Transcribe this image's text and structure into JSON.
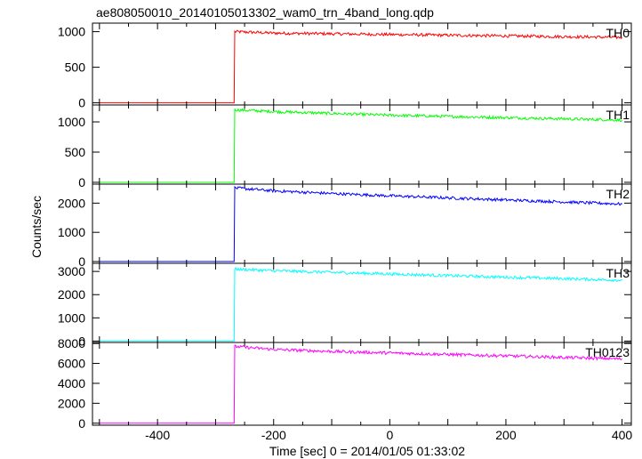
{
  "title": "ae808050010_20140105013302_wam0_trn_4band_long.qdp",
  "ylabel": "Counts/sec",
  "xlabel": "Time [sec] 0 = 2014/01/05 01:33:02",
  "chart_data": {
    "type": "line",
    "title": "ae808050010_20140105013302_wam0_trn_4band_long.qdp",
    "xlabel": "Time [sec] 0 = 2014/01/05 01:33:02",
    "ylabel": "Counts/sec",
    "xlim": [
      -512,
      416
    ],
    "x_ticks": [
      -400,
      -200,
      0,
      200,
      400
    ],
    "x_tick_labels": [
      "-400",
      "-200",
      "0",
      "200",
      "400"
    ],
    "grid": false,
    "panels": [
      {
        "name": "TH0",
        "color": "#ff0000",
        "ylim": [
          -30,
          1120
        ],
        "y_ticks": [
          0,
          500,
          1000
        ],
        "y_tick_labels": [
          "0",
          "500",
          "1000"
        ],
        "x": [
          -500,
          -268,
          -267,
          -200,
          -100,
          0,
          100,
          200,
          300,
          400
        ],
        "y": [
          0,
          0,
          1000,
          980,
          970,
          960,
          950,
          940,
          930,
          920
        ]
      },
      {
        "name": "TH1",
        "color": "#00ff00",
        "ylim": [
          -30,
          1280
        ],
        "y_ticks": [
          0,
          500,
          1000
        ],
        "y_tick_labels": [
          "0",
          "500",
          "1000"
        ],
        "x": [
          -500,
          -268,
          -267,
          -200,
          -100,
          0,
          100,
          200,
          300,
          400
        ],
        "y": [
          0,
          0,
          1200,
          1170,
          1140,
          1110,
          1090,
          1070,
          1050,
          1030
        ]
      },
      {
        "name": "TH2",
        "color": "#0000ff",
        "ylim": [
          -60,
          2650
        ],
        "y_ticks": [
          0,
          1000,
          2000
        ],
        "y_tick_labels": [
          "0",
          "1000",
          "2000"
        ],
        "x": [
          -500,
          -268,
          -267,
          -200,
          -100,
          0,
          100,
          200,
          300,
          400
        ],
        "y": [
          0,
          0,
          2520,
          2420,
          2330,
          2250,
          2180,
          2110,
          2040,
          1970
        ]
      },
      {
        "name": "TH3",
        "color": "#00ffff",
        "ylim": [
          -60,
          3350
        ],
        "y_ticks": [
          0,
          1000,
          2000,
          3000
        ],
        "y_tick_labels": [
          "0",
          "1000",
          "2000",
          "3000"
        ],
        "x": [
          -500,
          -268,
          -267,
          -200,
          -100,
          0,
          100,
          200,
          300,
          400
        ],
        "y": [
          0,
          0,
          3100,
          3030,
          2960,
          2890,
          2820,
          2750,
          2690,
          2620
        ]
      },
      {
        "name": "TH0123",
        "color": "#ff00ff",
        "ylim": [
          -200,
          8100
        ],
        "y_ticks": [
          0,
          2000,
          4000,
          6000,
          8000
        ],
        "y_tick_labels": [
          "0",
          "2000",
          "4000",
          "6000",
          "8000"
        ],
        "x": [
          -500,
          -268,
          -267,
          -200,
          -100,
          0,
          100,
          200,
          300,
          400
        ],
        "y": [
          0,
          0,
          7700,
          7400,
          7200,
          7050,
          6900,
          6750,
          6600,
          6450
        ]
      }
    ]
  }
}
